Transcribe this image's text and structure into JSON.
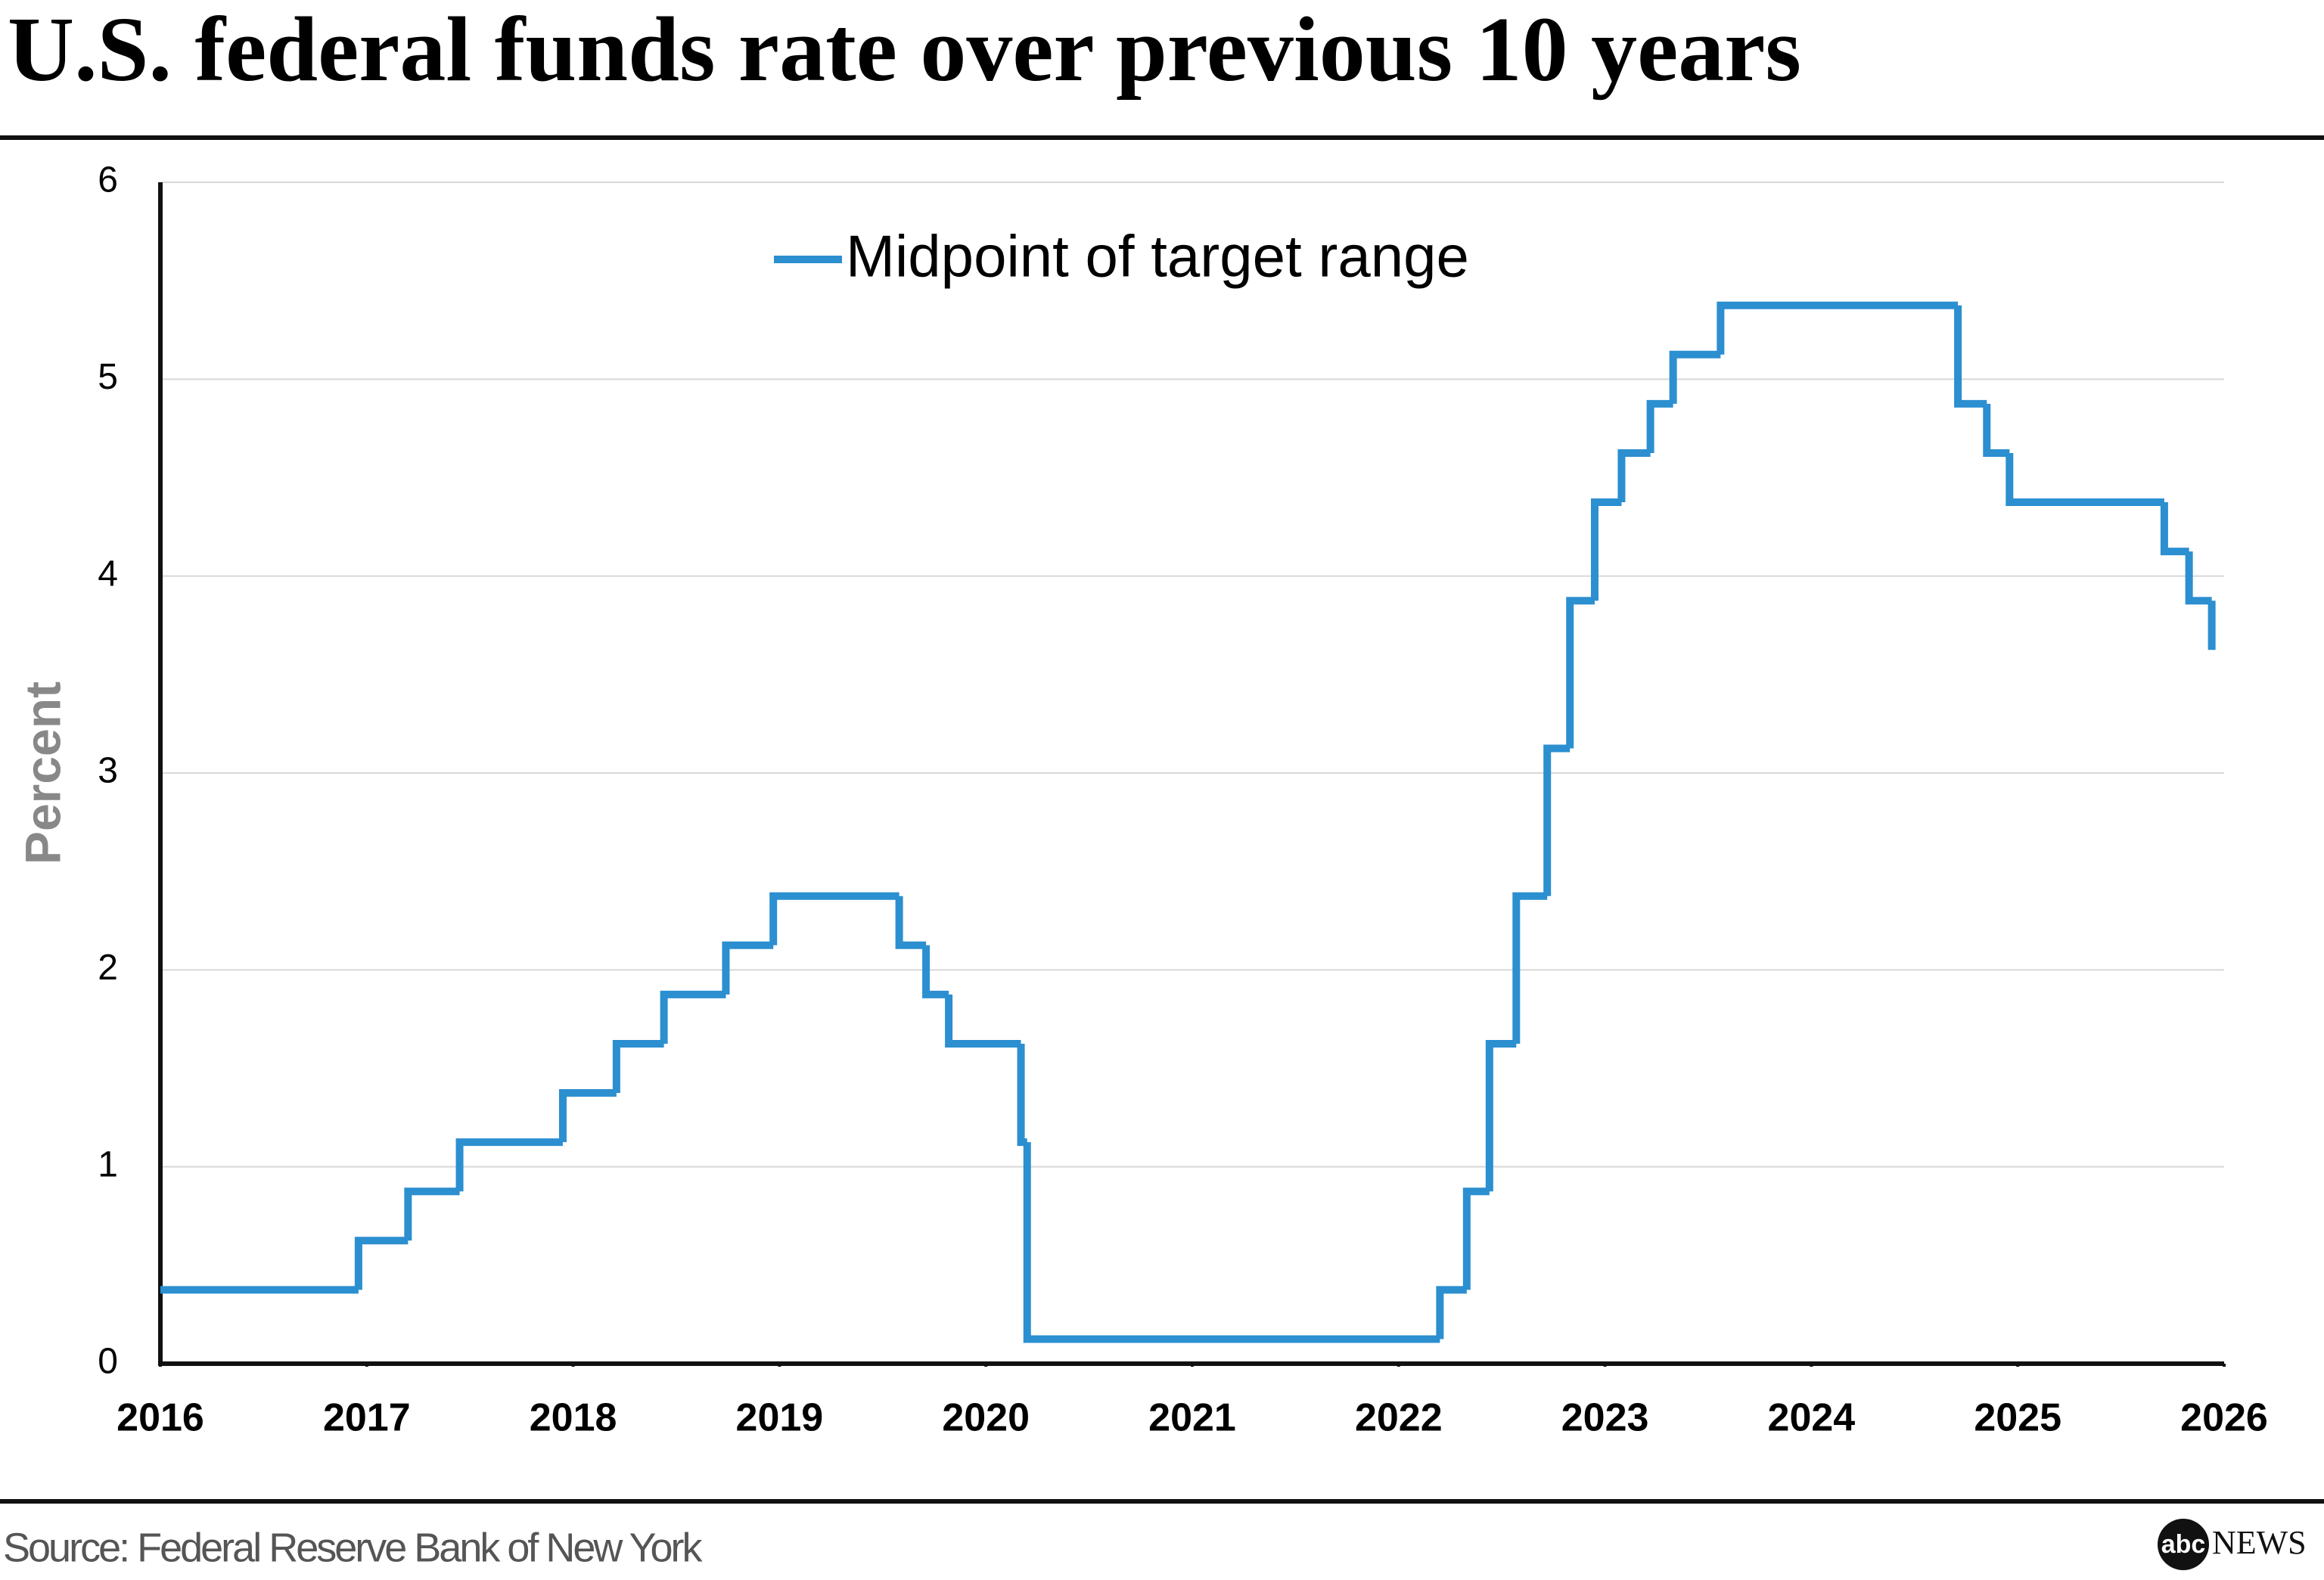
{
  "chart_data": {
    "type": "step",
    "title": "U.S. federal funds rate over previous 10 years",
    "y_label": "Percent",
    "source": "Source: Federal Reserve Bank of New York",
    "logo": {
      "abc": "abc",
      "news": "NEWS"
    },
    "xlim": [
      2016,
      2026
    ],
    "xticks": [
      2016,
      2017,
      2018,
      2019,
      2020,
      2021,
      2022,
      2023,
      2024,
      2025,
      2026
    ],
    "ylim": [
      0,
      6
    ],
    "yticks": [
      0,
      1,
      2,
      3,
      4,
      5,
      6
    ],
    "grid": true,
    "legend": "top",
    "x": [
      2016.0,
      2016.96,
      2017.2,
      2017.45,
      2017.95,
      2018.21,
      2018.44,
      2018.74,
      2018.97,
      2019.58,
      2019.71,
      2019.82,
      2020.17,
      2020.2,
      2022.2,
      2022.33,
      2022.44,
      2022.57,
      2022.72,
      2022.83,
      2022.95,
      2023.08,
      2023.22,
      2023.33,
      2023.56,
      2024.71,
      2024.85,
      2024.96,
      2025.71,
      2025.83,
      2025.94
    ],
    "series": [
      {
        "name": "Midpoint of target range",
        "color": "#2b8fd0",
        "values": [
          0.375,
          0.625,
          0.875,
          1.125,
          1.375,
          1.625,
          1.875,
          2.125,
          2.375,
          2.125,
          1.875,
          1.625,
          1.125,
          0.125,
          0.375,
          0.875,
          1.625,
          2.375,
          3.125,
          3.875,
          4.375,
          4.625,
          4.875,
          5.125,
          5.375,
          4.875,
          4.625,
          4.375,
          4.125,
          3.875,
          3.625
        ]
      }
    ]
  }
}
